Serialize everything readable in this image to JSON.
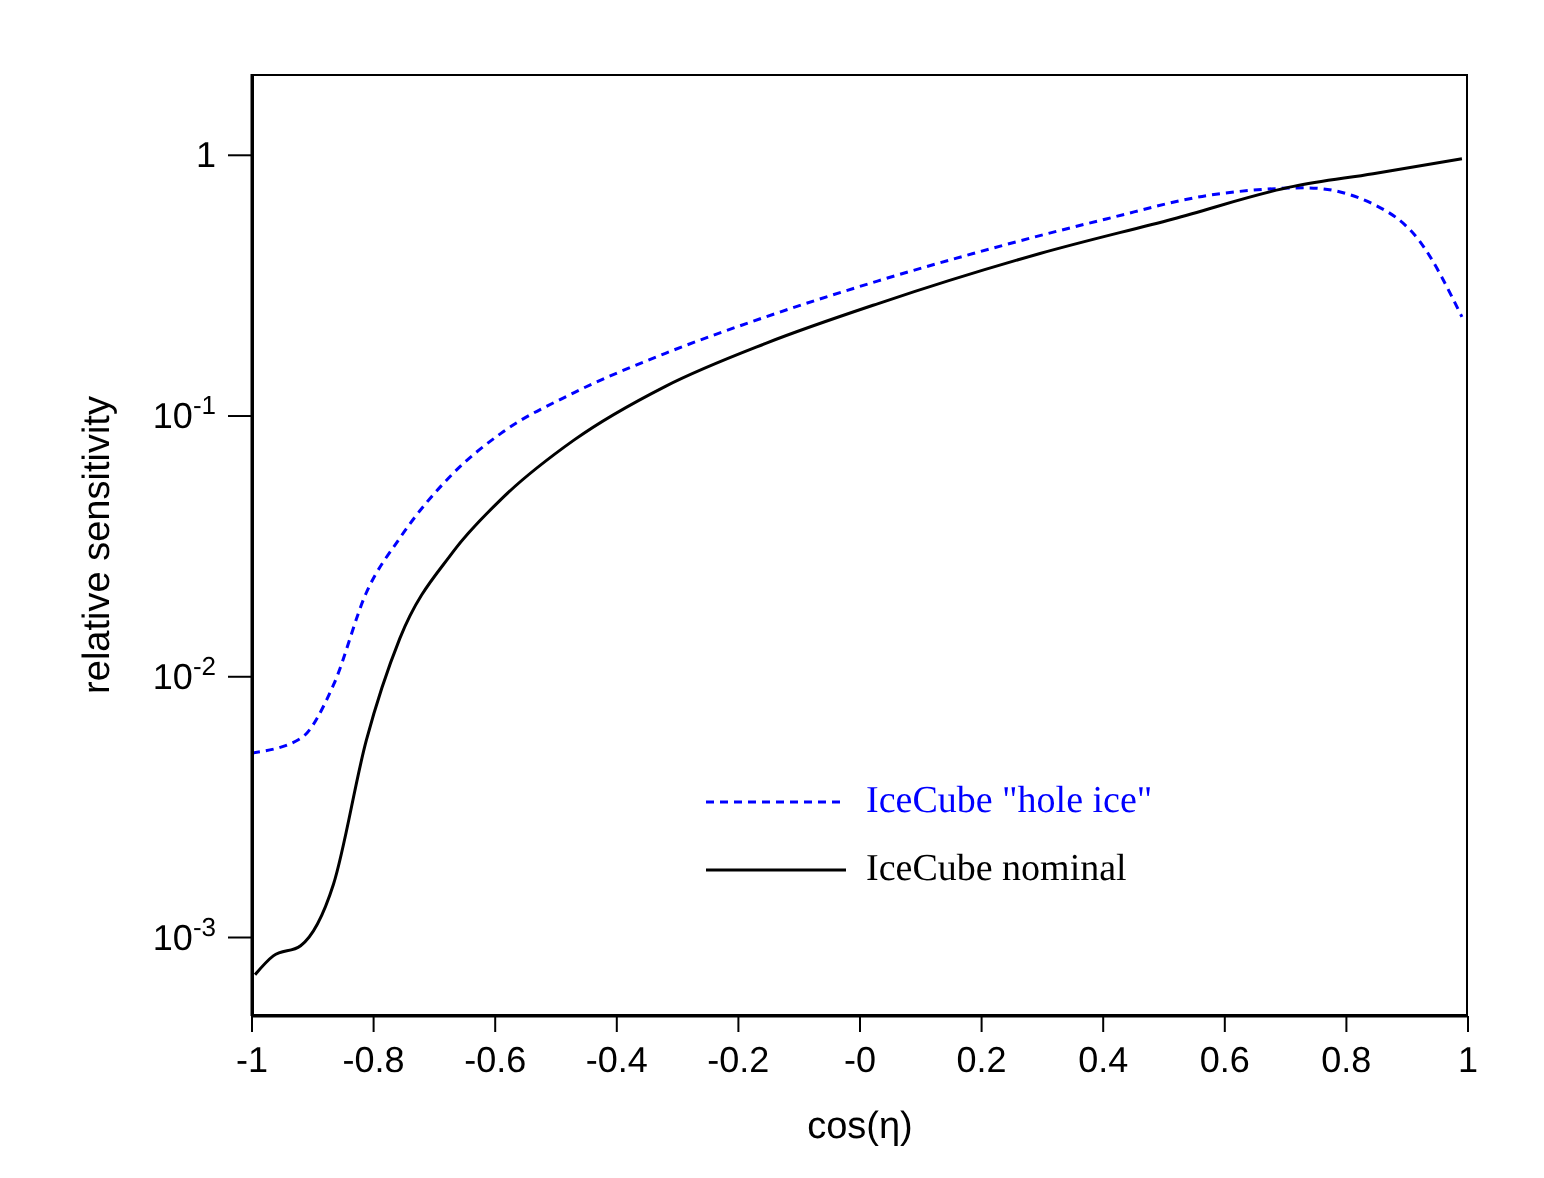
{
  "chart_data": {
    "type": "line",
    "xlabel": "cos(η)",
    "ylabel": "relative sensitivity",
    "log": "y",
    "legend": "bottom",
    "marker": "none",
    "xlim": [
      -1,
      1
    ],
    "xticks": [
      -1,
      -0.8,
      -0.6,
      -0.4,
      -0.2,
      {
        "value": 0,
        "label": "-0"
      },
      0.2,
      0.4,
      0.6,
      0.8,
      1
    ],
    "ylim": [
      0.0005,
      2.05
    ],
    "yticks": [
      {
        "value": 0.001,
        "label": "10$^{-3}$"
      },
      {
        "value": 0.01,
        "label": "10$^{-2}$"
      },
      {
        "value": 0.1,
        "label": "10$^{-1}$"
      },
      1
    ],
    "series": [
      {
        "name": "IceCube \"hole ice\"",
        "color": "#0000ff",
        "line_style": "dashed",
        "x": [
          -1,
          -0.92,
          -0.866,
          -0.812,
          -0.757,
          -0.67,
          -0.59,
          -0.47,
          -0.32,
          -0.155,
          0.03,
          0.186,
          0.405,
          0.57,
          0.735,
          0.844,
          0.92,
          0.99
        ],
        "values": [
          0.0051,
          0.0058,
          0.0093,
          0.021,
          0.034,
          0.06,
          0.086,
          0.123,
          0.174,
          0.24,
          0.33,
          0.42,
          0.57,
          0.7,
          0.75,
          0.65,
          0.47,
          0.24
        ]
      },
      {
        "name": "IceCube nominal",
        "color": "#000000",
        "line_style": "solid",
        "x": [
          -0.995,
          -0.965,
          -0.92,
          -0.866,
          -0.812,
          -0.757,
          -0.67,
          -0.59,
          -0.47,
          -0.32,
          -0.155,
          0.03,
          0.296,
          0.515,
          0.713,
          0.844,
          0.99
        ],
        "values": [
          0.00072,
          0.00085,
          0.00093,
          0.0016,
          0.0057,
          0.014,
          0.03,
          0.048,
          0.081,
          0.13,
          0.19,
          0.27,
          0.42,
          0.57,
          0.76,
          0.85,
          0.97
        ]
      }
    ]
  }
}
